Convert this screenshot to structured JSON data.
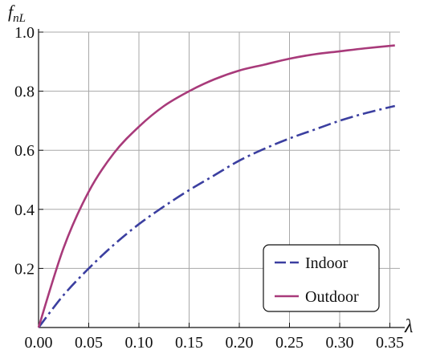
{
  "chart_data": {
    "type": "line",
    "xlabel": "λ",
    "ylabel": {
      "base": "f",
      "sub": "nL"
    },
    "xlim": [
      0,
      0.36
    ],
    "ylim": [
      0,
      1.0
    ],
    "grid": true,
    "x_ticks": [
      "0.00",
      "0.05",
      "0.10",
      "0.15",
      "0.20",
      "0.25",
      "0.30",
      "0.35"
    ],
    "x_tick_values": [
      0,
      0.05,
      0.1,
      0.15,
      0.2,
      0.25,
      0.3,
      0.35
    ],
    "y_ticks": [
      "0.2",
      "0.4",
      "0.6",
      "0.8",
      "1.0"
    ],
    "y_tick_values": [
      0.2,
      0.4,
      0.6,
      0.8,
      1.0
    ],
    "legend_position": "bottom-right",
    "series": [
      {
        "name": "Indoor",
        "color": "#3b3fa0",
        "style": "dash-dot",
        "x": [
          0,
          0.025,
          0.05,
          0.075,
          0.1,
          0.125,
          0.15,
          0.175,
          0.2,
          0.225,
          0.25,
          0.275,
          0.3,
          0.325,
          0.355
        ],
        "y": [
          0,
          0.11,
          0.2,
          0.28,
          0.35,
          0.41,
          0.465,
          0.515,
          0.565,
          0.605,
          0.64,
          0.67,
          0.7,
          0.725,
          0.75
        ]
      },
      {
        "name": "Outdoor",
        "color": "#a83a7a",
        "style": "solid",
        "x": [
          0,
          0.025,
          0.05,
          0.075,
          0.1,
          0.125,
          0.15,
          0.175,
          0.2,
          0.225,
          0.25,
          0.275,
          0.3,
          0.325,
          0.355
        ],
        "y": [
          0,
          0.27,
          0.46,
          0.59,
          0.68,
          0.75,
          0.8,
          0.84,
          0.87,
          0.89,
          0.91,
          0.925,
          0.935,
          0.945,
          0.955
        ]
      }
    ]
  }
}
